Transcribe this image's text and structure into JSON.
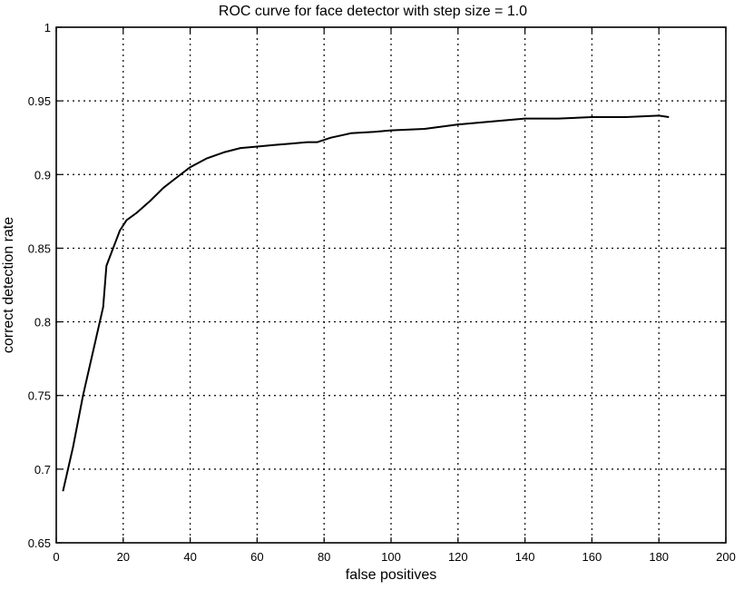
{
  "chart_data": {
    "type": "line",
    "title": "ROC curve for face detector with step size = 1.0",
    "xlabel": "false positives",
    "ylabel": "correct detection rate",
    "xlim": [
      0,
      200
    ],
    "ylim": [
      0.65,
      1.0
    ],
    "xticks": [
      0,
      20,
      40,
      60,
      80,
      100,
      120,
      140,
      160,
      180,
      200
    ],
    "yticks": [
      0.65,
      0.7,
      0.75,
      0.8,
      0.85,
      0.9,
      0.95,
      1.0
    ],
    "xtick_labels": [
      "0",
      "20",
      "40",
      "60",
      "80",
      "100",
      "120",
      "140",
      "160",
      "180",
      "200"
    ],
    "ytick_labels": [
      "0.65",
      "0.7",
      "0.75",
      "0.8",
      "0.85",
      "0.9",
      "0.95",
      "1"
    ],
    "grid": true,
    "series": [
      {
        "x": [
          2,
          5,
          8,
          11,
          14,
          15,
          17,
          19,
          21,
          24,
          28,
          32,
          36,
          40,
          45,
          50,
          55,
          60,
          65,
          70,
          75,
          78,
          82,
          88,
          95,
          100,
          110,
          120,
          130,
          140,
          150,
          160,
          170,
          180,
          183
        ],
        "y": [
          0.685,
          0.715,
          0.75,
          0.78,
          0.81,
          0.838,
          0.85,
          0.862,
          0.869,
          0.874,
          0.882,
          0.891,
          0.898,
          0.905,
          0.911,
          0.915,
          0.918,
          0.919,
          0.92,
          0.921,
          0.922,
          0.922,
          0.925,
          0.928,
          0.929,
          0.93,
          0.931,
          0.934,
          0.936,
          0.938,
          0.938,
          0.939,
          0.939,
          0.94,
          0.939
        ],
        "color": "#000000"
      }
    ]
  }
}
